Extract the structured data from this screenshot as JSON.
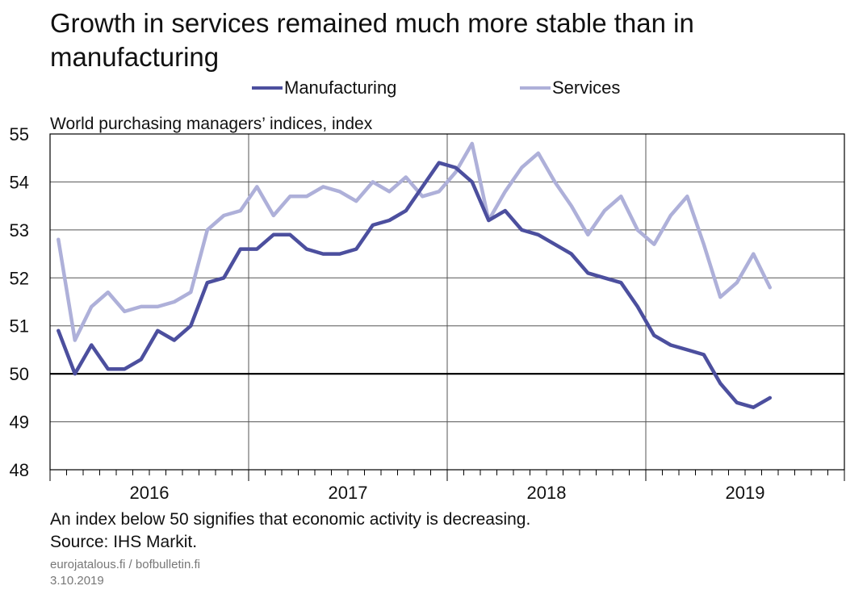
{
  "title": "Growth in services remained much more stable than in manufacturing",
  "subtitle": "World purchasing managers’ indices, index",
  "footnote": "An index below 50 signifies that economic activity is decreasing.",
  "source": "Source: IHS Markit.",
  "credit_site": "eurojatalous.fi  / bofbulletin.fi",
  "credit_date": "3.10.2019",
  "colors": {
    "manufacturing": "#4c4f9e",
    "services": "#aeb0d9",
    "grid": "#555555",
    "axis": "#000000"
  },
  "chart_data": {
    "type": "line",
    "title": "Growth in services remained much more stable than in manufacturing",
    "ylabel": "World purchasing managers’ indices, index",
    "ylim": [
      48,
      55
    ],
    "yticks": [
      48,
      49,
      50,
      51,
      52,
      53,
      54,
      55
    ],
    "x_start": "2016-01",
    "x_end": "2019-12",
    "year_labels": [
      "2016",
      "2017",
      "2018",
      "2019"
    ],
    "reference_line": 50,
    "legend_position": "top-center",
    "grid": true,
    "series": [
      {
        "name": "Manufacturing",
        "color": "#4c4f9e",
        "x": [
          "2016-01",
          "2016-02",
          "2016-03",
          "2016-04",
          "2016-05",
          "2016-06",
          "2016-07",
          "2016-08",
          "2016-09",
          "2016-10",
          "2016-11",
          "2016-12",
          "2017-01",
          "2017-02",
          "2017-03",
          "2017-04",
          "2017-05",
          "2017-06",
          "2017-07",
          "2017-08",
          "2017-09",
          "2017-10",
          "2017-11",
          "2017-12",
          "2018-01",
          "2018-02",
          "2018-03",
          "2018-04",
          "2018-05",
          "2018-06",
          "2018-07",
          "2018-08",
          "2018-09",
          "2018-10",
          "2018-11",
          "2018-12",
          "2019-01",
          "2019-02",
          "2019-03",
          "2019-04",
          "2019-05",
          "2019-06",
          "2019-07",
          "2019-08"
        ],
        "values": [
          50.9,
          50.0,
          50.6,
          50.1,
          50.1,
          50.3,
          50.9,
          50.7,
          51.0,
          51.9,
          52.0,
          52.6,
          52.6,
          52.9,
          52.9,
          52.6,
          52.5,
          52.5,
          52.6,
          53.1,
          53.2,
          53.4,
          53.9,
          54.4,
          54.3,
          54.0,
          53.2,
          53.4,
          53.0,
          52.9,
          52.7,
          52.5,
          52.1,
          52.0,
          51.9,
          51.4,
          50.8,
          50.6,
          50.5,
          50.4,
          49.8,
          49.4,
          49.3,
          49.5
        ]
      },
      {
        "name": "Services",
        "color": "#aeb0d9",
        "x": [
          "2016-01",
          "2016-02",
          "2016-03",
          "2016-04",
          "2016-05",
          "2016-06",
          "2016-07",
          "2016-08",
          "2016-09",
          "2016-10",
          "2016-11",
          "2016-12",
          "2017-01",
          "2017-02",
          "2017-03",
          "2017-04",
          "2017-05",
          "2017-06",
          "2017-07",
          "2017-08",
          "2017-09",
          "2017-10",
          "2017-11",
          "2017-12",
          "2018-01",
          "2018-02",
          "2018-03",
          "2018-04",
          "2018-05",
          "2018-06",
          "2018-07",
          "2018-08",
          "2018-09",
          "2018-10",
          "2018-11",
          "2018-12",
          "2019-01",
          "2019-02",
          "2019-03",
          "2019-04",
          "2019-05",
          "2019-06",
          "2019-07",
          "2019-08"
        ],
        "values": [
          52.8,
          50.7,
          51.4,
          51.7,
          51.3,
          51.4,
          51.4,
          51.5,
          51.7,
          53.0,
          53.3,
          53.4,
          53.9,
          53.3,
          53.7,
          53.7,
          53.9,
          53.8,
          53.6,
          54.0,
          53.8,
          54.1,
          53.7,
          53.8,
          54.2,
          54.8,
          53.2,
          53.8,
          54.3,
          54.6,
          54.0,
          53.5,
          52.9,
          53.4,
          53.7,
          53.0,
          52.7,
          53.3,
          53.7,
          52.7,
          51.6,
          51.9,
          52.5,
          51.8
        ]
      }
    ]
  }
}
